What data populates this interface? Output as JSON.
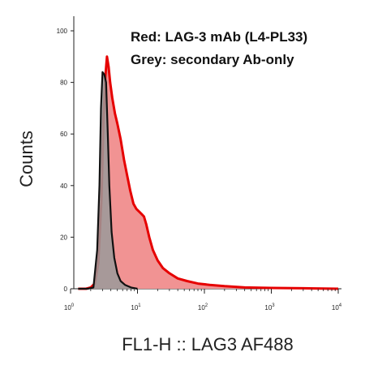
{
  "chart_data": {
    "type": "area",
    "xscale": "log",
    "xlim": [
      1,
      10000
    ],
    "ylim": [
      0,
      100
    ],
    "xlabel": "FL1-H :: LAG3 AF488",
    "ylabel": "Counts",
    "xticks": [
      {
        "value": 1,
        "base": "10",
        "exp": "0"
      },
      {
        "value": 10,
        "base": "10",
        "exp": "1"
      },
      {
        "value": 100,
        "base": "10",
        "exp": "2"
      },
      {
        "value": 1000,
        "base": "10",
        "exp": "3"
      },
      {
        "value": 10000,
        "base": "10",
        "exp": "4"
      }
    ],
    "yticks": [
      {
        "value": 0,
        "label": "0"
      },
      {
        "value": 20,
        "label": "20"
      },
      {
        "value": 40,
        "label": "40"
      },
      {
        "value": 60,
        "label": "60"
      },
      {
        "value": 80,
        "label": "80"
      },
      {
        "value": 100,
        "label": "100"
      }
    ],
    "legend": {
      "placement": "top-right",
      "lines": [
        "Red: LAG-3 mAb (L4-PL33)",
        "Grey: secondary Ab-only"
      ]
    },
    "series": [
      {
        "color": "#e60000",
        "fill": "#f19393",
        "x": [
          1.3,
          1.7,
          2.0,
          2.3,
          2.6,
          2.9,
          3.1,
          3.3,
          3.5,
          3.7,
          3.9,
          4.2,
          4.6,
          5.0,
          5.6,
          6.3,
          7.0,
          7.8,
          8.7,
          9.6,
          10.5,
          11.5,
          12.5,
          13.5,
          15.0,
          17.0,
          20.0,
          24.0,
          30.0,
          40.0,
          55.0,
          80.0,
          120.0,
          200.0,
          400.0,
          1000.0,
          3000.0,
          10000.0
        ],
        "y": [
          0,
          0,
          0.5,
          2,
          10,
          35,
          65,
          82,
          90,
          86,
          80,
          74,
          68,
          64,
          58,
          50,
          44,
          38,
          33,
          31,
          30,
          29,
          28,
          25,
          20,
          15,
          11,
          8,
          6,
          4,
          3,
          2,
          1.5,
          1,
          0.5,
          0.3,
          0.2,
          0
        ]
      },
      {
        "color": "#111111",
        "fill": "#9a9a9a",
        "x": [
          1.3,
          1.8,
          2.2,
          2.5,
          2.7,
          2.85,
          3.0,
          3.2,
          3.4,
          3.6,
          3.8,
          4.1,
          4.5,
          5.0,
          5.6,
          6.5,
          8.0,
          10.0
        ],
        "y": [
          0,
          0,
          0.5,
          15,
          40,
          70,
          84,
          83,
          80,
          60,
          40,
          22,
          12,
          6,
          3,
          1.5,
          0.5,
          0
        ]
      }
    ]
  }
}
